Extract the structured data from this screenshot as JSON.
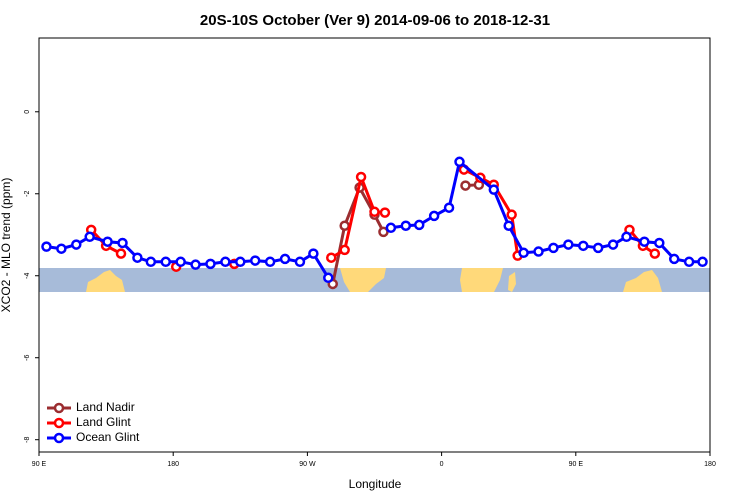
{
  "chart_data": {
    "type": "line",
    "title": "20S-10S October (Ver 9)   2014-09-06 to 2018-12-31",
    "x_label": "Longitude",
    "y_label": "XCO2 - MLO trend (ppm)",
    "xlim": [
      90,
      540
    ],
    "ylim": [
      -8.3,
      1.8
    ],
    "xticks": [
      {
        "value": 90,
        "label": "90 E"
      },
      {
        "value": 180,
        "label": "180"
      },
      {
        "value": 270,
        "label": "90 W"
      },
      {
        "value": 360,
        "label": "0"
      },
      {
        "value": 450,
        "label": "90 E"
      },
      {
        "value": 540,
        "label": "180"
      }
    ],
    "yticks": [
      0,
      -2,
      -4,
      -6,
      -8
    ],
    "legend": "bottom-left",
    "series": [
      {
        "name": "Land Nadir",
        "color": "#9b2d30",
        "x": [
          287,
          295,
          305,
          315,
          321,
          null,
          376,
          385
        ],
        "values": [
          -4.2,
          -2.78,
          -1.85,
          -2.51,
          -2.93,
          null,
          -1.8,
          -1.78
        ]
      },
      {
        "name": "Land Glint",
        "color": "#ff0000",
        "x": [
          125,
          135,
          145,
          null,
          182,
          null,
          221,
          null,
          286,
          295,
          306,
          315,
          322,
          null,
          375,
          386,
          395,
          407,
          411,
          null,
          486,
          495,
          503
        ],
        "values": [
          -2.88,
          -3.27,
          -3.46,
          null,
          -3.78,
          null,
          -3.71,
          null,
          -3.56,
          -3.37,
          -1.59,
          -2.44,
          -2.46,
          null,
          -1.41,
          -1.61,
          -1.78,
          -2.51,
          -3.51,
          null,
          -2.88,
          -3.27,
          -3.46
        ]
      },
      {
        "name": "Ocean Glint",
        "color": "#0000ff",
        "x": [
          95,
          105,
          115,
          124,
          136,
          146,
          156,
          165,
          175,
          185,
          195,
          205,
          215,
          225,
          235,
          245,
          255,
          265,
          274,
          284,
          null,
          326,
          336,
          345,
          355,
          365,
          372,
          395,
          405,
          415,
          425,
          435,
          445,
          455,
          465,
          475,
          484,
          496,
          506,
          516,
          526,
          535
        ],
        "values": [
          -3.29,
          -3.34,
          -3.24,
          -3.05,
          -3.17,
          -3.2,
          -3.56,
          -3.66,
          -3.66,
          -3.66,
          -3.73,
          -3.71,
          -3.66,
          -3.66,
          -3.63,
          -3.66,
          -3.59,
          -3.66,
          -3.46,
          -4.05,
          null,
          -2.83,
          -2.78,
          -2.76,
          -2.54,
          -2.34,
          -1.22,
          -1.9,
          -2.78,
          -3.44,
          -3.41,
          -3.32,
          -3.24,
          -3.27,
          -3.32,
          -3.24,
          -3.05,
          -3.17,
          -3.2,
          -3.59,
          -3.66,
          -3.66
        ]
      }
    ]
  }
}
